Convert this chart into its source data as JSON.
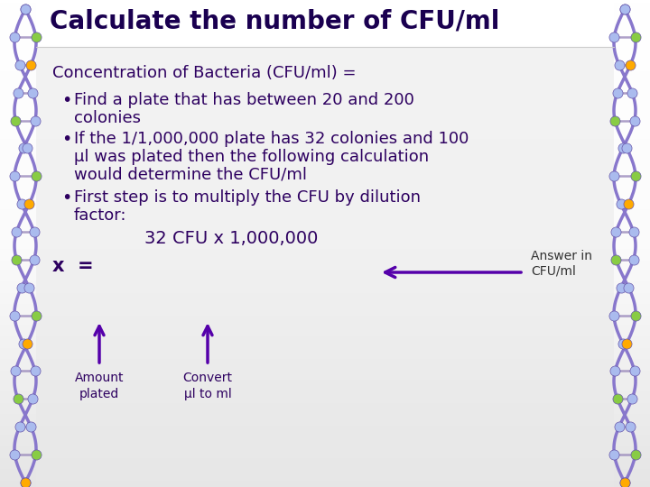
{
  "title": "Calculate the number of CFU/ml",
  "title_color": "#1a0050",
  "title_fontsize": 20,
  "bg_color": "#ffffff",
  "text_color": "#2d0060",
  "body_fontsize": 13.0,
  "line1": "Concentration of Bacteria (CFU/ml) =",
  "bullet1a": "Find a plate that has between 20 and 200",
  "bullet1b": "  colonies",
  "bullet2a": "If the 1/1,000,000 plate has 32 colonies and 100",
  "bullet2b": "  μl was plated then the following calculation",
  "bullet2c": "  would determine the CFU/ml",
  "bullet3a": "First step is to multiply the CFU by dilution",
  "bullet3b": "  factor:",
  "formula_line1": "32 CFU x 1,000,000",
  "formula_line2": "x  =",
  "arrow_label": "Answer in\nCFU/ml",
  "arrow_color": "#5500aa",
  "label_amount": "Amount\nplated",
  "label_convert": "Convert\nμl to ml",
  "dna_strand_color": "#8877cc",
  "dna_node_color": "#aabbee",
  "dna_rung_colors": [
    "#88cc44",
    "#ffaa00",
    "#aabbee",
    "#ffaa00",
    "#88cc44"
  ],
  "title_bg": "#ffffff",
  "content_bg_top": "#f0f0f0",
  "content_bg_bottom": "#d0d0d8"
}
